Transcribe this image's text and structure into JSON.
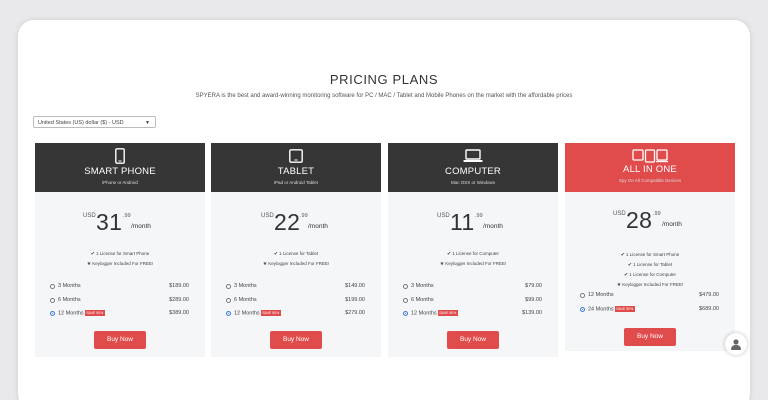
{
  "header": {
    "title": "PRICING PLANS",
    "subtitle": "SPYERA is the best and award-winning monitoring software for PC / MAC / Tablet and Mobile Phones on the market with the affordable prices"
  },
  "currency_select": {
    "value": "United States (US) dollar ($) - USD"
  },
  "colors": {
    "accent": "#e04b4b",
    "header_dark": "#363636"
  },
  "plans": [
    {
      "name": "SMART PHONE",
      "sub": "iPhone or Android",
      "icon": "smartphone-icon",
      "currency": "USD",
      "price": "31",
      "cents": ".99",
      "per": "/month",
      "features": [
        "1 License for Smart Phone",
        "Keylogger Included For FREE!"
      ],
      "options": [
        {
          "label": "3 Months",
          "price": "$189.00",
          "badge": "",
          "checked": false
        },
        {
          "label": "6 Months",
          "price": "$289.00",
          "badge": "",
          "checked": false
        },
        {
          "label": "12 Months",
          "price": "$389.00",
          "badge": "SAVE 50%",
          "checked": true
        }
      ],
      "button": "Buy Now"
    },
    {
      "name": "TABLET",
      "sub": "iPad or Android Tablet",
      "icon": "tablet-icon",
      "currency": "USD",
      "price": "22",
      "cents": ".99",
      "per": "/month",
      "features": [
        "1 License for Tablet",
        "Keylogger Included For FREE!"
      ],
      "options": [
        {
          "label": "3 Months",
          "price": "$149.00",
          "badge": "",
          "checked": false
        },
        {
          "label": "6 Months",
          "price": "$199.00",
          "badge": "",
          "checked": false
        },
        {
          "label": "12 Months",
          "price": "$279.00",
          "badge": "SAVE 50%",
          "checked": true
        }
      ],
      "button": "Buy Now"
    },
    {
      "name": "COMPUTER",
      "sub": "Mac OSX or Windows",
      "icon": "laptop-icon",
      "currency": "USD",
      "price": "11",
      "cents": ".99",
      "per": "/month",
      "features": [
        "1 License for Computer",
        "Keylogger Included For FREE!"
      ],
      "options": [
        {
          "label": "3 Months",
          "price": "$79.00",
          "badge": "",
          "checked": false
        },
        {
          "label": "6 Months",
          "price": "$99.00",
          "badge": "",
          "checked": false
        },
        {
          "label": "12 Months",
          "price": "$139.00",
          "badge": "SAVE 50%",
          "checked": true
        }
      ],
      "button": "Buy Now"
    },
    {
      "name": "ALL IN ONE",
      "sub": "Spy On All Compatible Devices",
      "icon": "all-devices-icon",
      "currency": "USD",
      "price": "28",
      "cents": ".99",
      "per": "/month",
      "features": [
        "1 License for Smart Phone",
        "1 License for Tablet",
        "1 License for Computer",
        "Keylogger Included For FREE!"
      ],
      "options": [
        {
          "label": "12 Months",
          "price": "$479.00",
          "badge": "",
          "checked": false
        },
        {
          "label": "24 Months",
          "price": "$689.00",
          "badge": "SAVE 50%",
          "checked": true
        }
      ],
      "button": "Buy Now"
    }
  ],
  "chat": {
    "icon": "user-chat-icon"
  }
}
